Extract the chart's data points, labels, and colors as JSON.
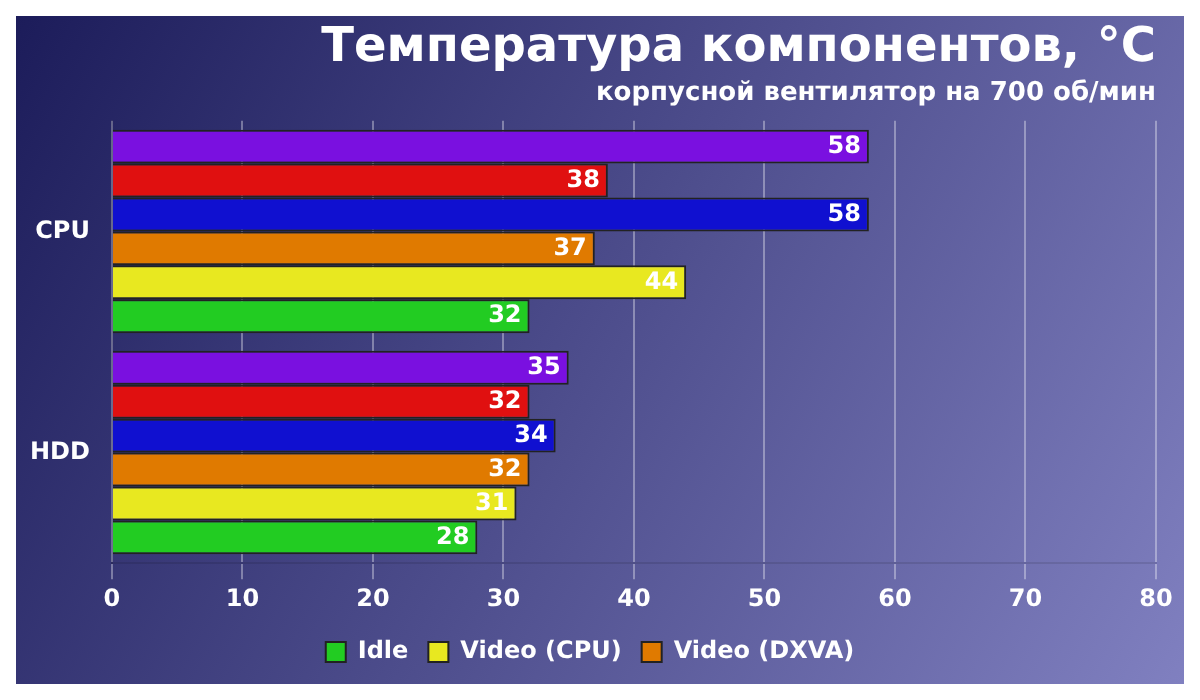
{
  "chart_data": {
    "type": "bar",
    "orientation": "horizontal",
    "title": "Температура компонентов, °C",
    "subtitle": "корпусной вентилятор на 700 об/мин",
    "categories": [
      "CPU",
      "HDD"
    ],
    "series": [
      {
        "name": "Idle",
        "color": "#22cc22",
        "values": [
          32,
          28
        ]
      },
      {
        "name": "Video (CPU)",
        "color": "#e8e820",
        "values": [
          44,
          31
        ]
      },
      {
        "name": "Video (DXVA)",
        "color": "#e07a00",
        "values": [
          37,
          32
        ]
      },
      {
        "color": "#1010d0",
        "values": [
          58,
          34
        ]
      },
      {
        "color": "#e01010",
        "values": [
          38,
          32
        ]
      },
      {
        "color": "#7a10e0",
        "values": [
          58,
          35
        ]
      }
    ],
    "xlim": [
      0,
      80
    ],
    "xticks": [
      0,
      10,
      20,
      30,
      40,
      50,
      60,
      70,
      80
    ],
    "grid": "x",
    "legend": "bottom",
    "data_labels": true
  }
}
